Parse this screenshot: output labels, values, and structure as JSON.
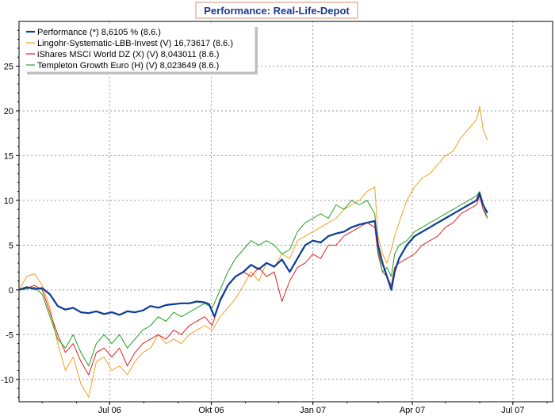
{
  "chart_data": {
    "type": "line",
    "title": "Performance: Real-Life-Depot",
    "xlabel": "",
    "ylabel": "",
    "x_start": "2006-04-10",
    "x_end": "2007-08-06",
    "x_ticks": [
      {
        "date": "2006-07-01",
        "label": "Jul 06"
      },
      {
        "date": "2006-10-01",
        "label": "Okt 06"
      },
      {
        "date": "2007-01-01",
        "label": "Jan 07"
      },
      {
        "date": "2007-04-01",
        "label": "Apr 07"
      },
      {
        "date": "2007-07-01",
        "label": "Jul 07"
      }
    ],
    "ylim": [
      -12.5,
      30
    ],
    "y_ticks": [
      -10,
      -5,
      0,
      5,
      10,
      15,
      20,
      25
    ],
    "grid": true,
    "legend_position": "top-left",
    "series": [
      {
        "name": "Performance (*) 8,6105 % (8.6.)",
        "color": "#0a3c96",
        "width": 2.2,
        "points": [
          [
            "2006-04-10",
            0.0
          ],
          [
            "2006-04-17",
            0.3
          ],
          [
            "2006-04-24",
            0.1
          ],
          [
            "2006-05-01",
            0.2
          ],
          [
            "2006-05-08",
            -0.5
          ],
          [
            "2006-05-15",
            -1.8
          ],
          [
            "2006-05-22",
            -2.2
          ],
          [
            "2006-05-29",
            -2.0
          ],
          [
            "2006-06-05",
            -2.5
          ],
          [
            "2006-06-12",
            -2.6
          ],
          [
            "2006-06-19",
            -2.4
          ],
          [
            "2006-06-26",
            -2.7
          ],
          [
            "2006-07-03",
            -2.5
          ],
          [
            "2006-07-10",
            -2.8
          ],
          [
            "2006-07-17",
            -2.4
          ],
          [
            "2006-07-24",
            -2.5
          ],
          [
            "2006-07-31",
            -2.3
          ],
          [
            "2006-08-07",
            -1.8
          ],
          [
            "2006-08-14",
            -2.0
          ],
          [
            "2006-08-21",
            -1.7
          ],
          [
            "2006-08-28",
            -1.6
          ],
          [
            "2006-09-04",
            -1.5
          ],
          [
            "2006-09-11",
            -1.5
          ],
          [
            "2006-09-18",
            -1.3
          ],
          [
            "2006-09-25",
            -1.4
          ],
          [
            "2006-09-29",
            -1.6
          ],
          [
            "2006-10-04",
            -3.0
          ],
          [
            "2006-10-09",
            -1.2
          ],
          [
            "2006-10-16",
            0.5
          ],
          [
            "2006-10-23",
            1.5
          ],
          [
            "2006-10-30",
            2.0
          ],
          [
            "2006-11-06",
            2.8
          ],
          [
            "2006-11-13",
            2.3
          ],
          [
            "2006-11-20",
            3.0
          ],
          [
            "2006-11-27",
            2.6
          ],
          [
            "2006-12-04",
            3.4
          ],
          [
            "2006-12-11",
            2.0
          ],
          [
            "2006-12-18",
            3.5
          ],
          [
            "2006-12-25",
            5.0
          ],
          [
            "2007-01-01",
            5.5
          ],
          [
            "2007-01-08",
            5.3
          ],
          [
            "2007-01-15",
            6.0
          ],
          [
            "2007-01-22",
            6.3
          ],
          [
            "2007-01-29",
            6.5
          ],
          [
            "2007-02-05",
            7.0
          ],
          [
            "2007-02-12",
            7.3
          ],
          [
            "2007-02-19",
            7.5
          ],
          [
            "2007-02-26",
            7.7
          ],
          [
            "2007-03-01",
            5.0
          ],
          [
            "2007-03-05",
            3.0
          ],
          [
            "2007-03-09",
            1.5
          ],
          [
            "2007-03-13",
            0.0
          ],
          [
            "2007-03-16",
            2.0
          ],
          [
            "2007-03-20",
            3.5
          ],
          [
            "2007-03-27",
            5.0
          ],
          [
            "2007-04-03",
            6.0
          ],
          [
            "2007-04-10",
            6.5
          ],
          [
            "2007-04-17",
            7.0
          ],
          [
            "2007-04-24",
            7.5
          ],
          [
            "2007-05-01",
            8.0
          ],
          [
            "2007-05-08",
            8.5
          ],
          [
            "2007-05-15",
            9.0
          ],
          [
            "2007-05-22",
            9.5
          ],
          [
            "2007-05-29",
            10.0
          ],
          [
            "2007-06-01",
            10.8
          ],
          [
            "2007-06-04",
            9.5
          ],
          [
            "2007-06-08",
            8.6
          ]
        ]
      },
      {
        "name": "Lingohr-Systematic-LBB-Invest (V) 16,73617 (8.6.)",
        "color": "#f0a020",
        "width": 1.0,
        "points": [
          [
            "2006-04-10",
            0.0
          ],
          [
            "2006-04-17",
            1.5
          ],
          [
            "2006-04-24",
            1.8
          ],
          [
            "2006-05-01",
            0.5
          ],
          [
            "2006-05-08",
            -2.0
          ],
          [
            "2006-05-15",
            -6.0
          ],
          [
            "2006-05-22",
            -9.0
          ],
          [
            "2006-05-29",
            -7.5
          ],
          [
            "2006-06-05",
            -10.5
          ],
          [
            "2006-06-12",
            -12.0
          ],
          [
            "2006-06-19",
            -8.0
          ],
          [
            "2006-06-26",
            -7.5
          ],
          [
            "2006-07-03",
            -9.0
          ],
          [
            "2006-07-10",
            -8.5
          ],
          [
            "2006-07-17",
            -9.5
          ],
          [
            "2006-07-24",
            -8.0
          ],
          [
            "2006-07-31",
            -7.0
          ],
          [
            "2006-08-07",
            -6.5
          ],
          [
            "2006-08-14",
            -5.0
          ],
          [
            "2006-08-21",
            -6.0
          ],
          [
            "2006-08-28",
            -5.5
          ],
          [
            "2006-09-04",
            -6.0
          ],
          [
            "2006-09-11",
            -5.0
          ],
          [
            "2006-09-18",
            -4.5
          ],
          [
            "2006-09-25",
            -4.0
          ],
          [
            "2006-10-02",
            -4.5
          ],
          [
            "2006-10-09",
            -3.0
          ],
          [
            "2006-10-16",
            -2.0
          ],
          [
            "2006-10-23",
            -1.0
          ],
          [
            "2006-10-30",
            0.5
          ],
          [
            "2006-11-06",
            2.0
          ],
          [
            "2006-11-13",
            1.0
          ],
          [
            "2006-11-20",
            3.0
          ],
          [
            "2006-11-27",
            2.5
          ],
          [
            "2006-12-04",
            4.0
          ],
          [
            "2006-12-11",
            3.5
          ],
          [
            "2006-12-18",
            5.5
          ],
          [
            "2006-12-25",
            6.0
          ],
          [
            "2007-01-01",
            6.5
          ],
          [
            "2007-01-08",
            7.0
          ],
          [
            "2007-01-15",
            7.5
          ],
          [
            "2007-01-22",
            8.0
          ],
          [
            "2007-01-29",
            9.0
          ],
          [
            "2007-02-05",
            9.5
          ],
          [
            "2007-02-12",
            10.0
          ],
          [
            "2007-02-19",
            11.0
          ],
          [
            "2007-02-26",
            11.5
          ],
          [
            "2007-03-01",
            6.0
          ],
          [
            "2007-03-05",
            4.0
          ],
          [
            "2007-03-09",
            3.0
          ],
          [
            "2007-03-13",
            4.5
          ],
          [
            "2007-03-16",
            6.0
          ],
          [
            "2007-03-20",
            7.5
          ],
          [
            "2007-03-27",
            10.0
          ],
          [
            "2007-04-03",
            11.5
          ],
          [
            "2007-04-10",
            12.5
          ],
          [
            "2007-04-17",
            13.0
          ],
          [
            "2007-04-24",
            14.0
          ],
          [
            "2007-05-01",
            15.0
          ],
          [
            "2007-05-08",
            15.5
          ],
          [
            "2007-05-15",
            17.0
          ],
          [
            "2007-05-22",
            18.0
          ],
          [
            "2007-05-29",
            19.0
          ],
          [
            "2007-06-01",
            20.5
          ],
          [
            "2007-06-04",
            18.0
          ],
          [
            "2007-06-08",
            16.7
          ]
        ]
      },
      {
        "name": "iShares MSCI World DZ (X) (V) 8,043011 (8.6.)",
        "color": "#e02020",
        "width": 1.0,
        "points": [
          [
            "2006-04-10",
            0.0
          ],
          [
            "2006-04-17",
            0.2
          ],
          [
            "2006-04-24",
            0.5
          ],
          [
            "2006-05-01",
            0.0
          ],
          [
            "2006-05-08",
            -2.5
          ],
          [
            "2006-05-15",
            -5.0
          ],
          [
            "2006-05-22",
            -7.0
          ],
          [
            "2006-05-29",
            -6.0
          ],
          [
            "2006-06-05",
            -8.0
          ],
          [
            "2006-06-12",
            -9.5
          ],
          [
            "2006-06-19",
            -7.0
          ],
          [
            "2006-06-26",
            -6.5
          ],
          [
            "2006-07-03",
            -7.5
          ],
          [
            "2006-07-10",
            -6.5
          ],
          [
            "2006-07-17",
            -8.5
          ],
          [
            "2006-07-24",
            -7.0
          ],
          [
            "2006-07-31",
            -6.0
          ],
          [
            "2006-08-07",
            -5.5
          ],
          [
            "2006-08-14",
            -5.0
          ],
          [
            "2006-08-21",
            -5.5
          ],
          [
            "2006-08-28",
            -4.5
          ],
          [
            "2006-09-04",
            -5.0
          ],
          [
            "2006-09-11",
            -4.0
          ],
          [
            "2006-09-18",
            -3.5
          ],
          [
            "2006-09-25",
            -3.0
          ],
          [
            "2006-10-02",
            -4.0
          ],
          [
            "2006-10-09",
            -1.0
          ],
          [
            "2006-10-16",
            0.5
          ],
          [
            "2006-10-23",
            1.5
          ],
          [
            "2006-10-30",
            2.0
          ],
          [
            "2006-11-06",
            1.5
          ],
          [
            "2006-11-13",
            2.5
          ],
          [
            "2006-11-20",
            1.5
          ],
          [
            "2006-11-27",
            2.0
          ],
          [
            "2006-12-04",
            -1.3
          ],
          [
            "2006-12-11",
            1.0
          ],
          [
            "2006-12-18",
            2.5
          ],
          [
            "2006-12-25",
            3.0
          ],
          [
            "2007-01-01",
            4.0
          ],
          [
            "2007-01-08",
            3.5
          ],
          [
            "2007-01-15",
            5.0
          ],
          [
            "2007-01-22",
            5.0
          ],
          [
            "2007-01-29",
            6.0
          ],
          [
            "2007-02-05",
            6.5
          ],
          [
            "2007-02-12",
            7.0
          ],
          [
            "2007-02-19",
            7.5
          ],
          [
            "2007-02-26",
            7.0
          ],
          [
            "2007-03-01",
            4.0
          ],
          [
            "2007-03-05",
            2.0
          ],
          [
            "2007-03-09",
            1.5
          ],
          [
            "2007-03-13",
            0.5
          ],
          [
            "2007-03-16",
            2.5
          ],
          [
            "2007-03-20",
            3.0
          ],
          [
            "2007-03-27",
            3.5
          ],
          [
            "2007-04-03",
            4.0
          ],
          [
            "2007-04-10",
            5.0
          ],
          [
            "2007-04-17",
            5.5
          ],
          [
            "2007-04-24",
            6.0
          ],
          [
            "2007-05-01",
            7.0
          ],
          [
            "2007-05-08",
            7.5
          ],
          [
            "2007-05-15",
            8.5
          ],
          [
            "2007-05-22",
            9.0
          ],
          [
            "2007-05-29",
            9.5
          ],
          [
            "2007-06-01",
            10.5
          ],
          [
            "2007-06-04",
            9.0
          ],
          [
            "2007-06-08",
            8.0
          ]
        ]
      },
      {
        "name": "Templeton Growth Euro (H) (V) 8,023649 (8.6.)",
        "color": "#20a020",
        "width": 1.0,
        "points": [
          [
            "2006-04-10",
            0.0
          ],
          [
            "2006-04-17",
            0.1
          ],
          [
            "2006-04-24",
            0.3
          ],
          [
            "2006-05-01",
            -0.5
          ],
          [
            "2006-05-08",
            -3.0
          ],
          [
            "2006-05-15",
            -5.5
          ],
          [
            "2006-05-22",
            -6.5
          ],
          [
            "2006-05-29",
            -5.0
          ],
          [
            "2006-06-05",
            -7.0
          ],
          [
            "2006-06-12",
            -8.5
          ],
          [
            "2006-06-19",
            -6.0
          ],
          [
            "2006-06-26",
            -5.0
          ],
          [
            "2006-07-03",
            -6.0
          ],
          [
            "2006-07-10",
            -5.0
          ],
          [
            "2006-07-17",
            -6.5
          ],
          [
            "2006-07-24",
            -5.5
          ],
          [
            "2006-07-31",
            -4.5
          ],
          [
            "2006-08-07",
            -4.0
          ],
          [
            "2006-08-14",
            -3.0
          ],
          [
            "2006-08-21",
            -3.5
          ],
          [
            "2006-08-28",
            -2.5
          ],
          [
            "2006-09-04",
            -3.0
          ],
          [
            "2006-09-11",
            -2.5
          ],
          [
            "2006-09-18",
            -2.0
          ],
          [
            "2006-09-25",
            -1.5
          ],
          [
            "2006-10-02",
            -2.0
          ],
          [
            "2006-10-09",
            0.0
          ],
          [
            "2006-10-16",
            2.0
          ],
          [
            "2006-10-23",
            3.5
          ],
          [
            "2006-10-30",
            4.5
          ],
          [
            "2006-11-06",
            5.5
          ],
          [
            "2006-11-13",
            5.0
          ],
          [
            "2006-11-20",
            5.5
          ],
          [
            "2006-11-27",
            5.0
          ],
          [
            "2006-12-04",
            4.0
          ],
          [
            "2006-12-11",
            4.5
          ],
          [
            "2006-12-18",
            6.5
          ],
          [
            "2006-12-25",
            7.5
          ],
          [
            "2007-01-01",
            8.0
          ],
          [
            "2007-01-08",
            8.5
          ],
          [
            "2007-01-15",
            8.0
          ],
          [
            "2007-01-22",
            9.5
          ],
          [
            "2007-01-29",
            9.0
          ],
          [
            "2007-02-05",
            10.0
          ],
          [
            "2007-02-12",
            9.5
          ],
          [
            "2007-02-19",
            10.0
          ],
          [
            "2007-02-26",
            8.5
          ],
          [
            "2007-03-01",
            4.5
          ],
          [
            "2007-03-05",
            2.0
          ],
          [
            "2007-03-09",
            2.5
          ],
          [
            "2007-03-13",
            1.5
          ],
          [
            "2007-03-16",
            4.0
          ],
          [
            "2007-03-20",
            5.0
          ],
          [
            "2007-03-27",
            5.5
          ],
          [
            "2007-04-03",
            6.5
          ],
          [
            "2007-04-10",
            7.0
          ],
          [
            "2007-04-17",
            7.5
          ],
          [
            "2007-04-24",
            8.0
          ],
          [
            "2007-05-01",
            8.5
          ],
          [
            "2007-05-08",
            9.0
          ],
          [
            "2007-05-15",
            9.5
          ],
          [
            "2007-05-22",
            10.0
          ],
          [
            "2007-05-29",
            10.5
          ],
          [
            "2007-06-01",
            11.0
          ],
          [
            "2007-06-04",
            9.5
          ],
          [
            "2007-06-08",
            8.0
          ]
        ]
      }
    ]
  }
}
